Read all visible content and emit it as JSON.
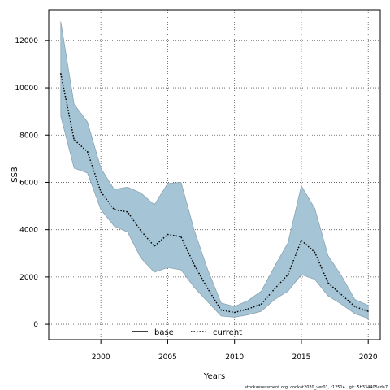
{
  "chart_data": {
    "type": "line",
    "title": "",
    "xlabel": "Years",
    "ylabel": "SSB",
    "xlim": [
      1996.1,
      2020.9
    ],
    "ylim": [
      -650,
      13300
    ],
    "x_ticks": [
      2000,
      2005,
      2010,
      2015,
      2020
    ],
    "x_tick_labels": [
      "2000",
      "2005",
      "2010",
      "2015",
      "2020"
    ],
    "y_ticks": [
      0,
      2000,
      4000,
      6000,
      8000,
      10000,
      12000
    ],
    "y_tick_labels": [
      "0",
      "2000",
      "4000",
      "6000",
      "8000",
      "10000",
      "12000"
    ],
    "grid": true,
    "legend_position": "bottom-left",
    "series": [
      {
        "name": "base",
        "style": "solid",
        "color": "#000000",
        "x": [],
        "values": []
      },
      {
        "name": "current",
        "style": "dotted",
        "color": "#000000",
        "x": [
          1997,
          1998,
          1999,
          2000,
          2001,
          2002,
          2003,
          2004,
          2005,
          2006,
          2007,
          2008,
          2009,
          2010,
          2011,
          2012,
          2013,
          2014,
          2015,
          2016,
          2017,
          2018,
          2019,
          2020
        ],
        "values": [
          10600,
          7800,
          7300,
          5600,
          4850,
          4750,
          3950,
          3300,
          3800,
          3700,
          2500,
          1500,
          600,
          500,
          650,
          850,
          1500,
          2100,
          3550,
          3050,
          1750,
          1250,
          750,
          550
        ]
      }
    ],
    "confidence_band": {
      "color": "#a5c5d6",
      "x": [
        1997,
        1998,
        1999,
        2000,
        2001,
        2002,
        2003,
        2004,
        2005,
        2006,
        2007,
        2008,
        2009,
        2010,
        2011,
        2012,
        2013,
        2014,
        2015,
        2016,
        2017,
        2018,
        2019,
        2020
      ],
      "upper": [
        12800,
        9300,
        8550,
        6600,
        5700,
        5800,
        5550,
        5050,
        5950,
        6000,
        3950,
        2300,
        900,
        750,
        1000,
        1400,
        2450,
        3450,
        5850,
        4900,
        2900,
        2050,
        1050,
        800
      ],
      "lower": [
        8800,
        6600,
        6400,
        4850,
        4150,
        3900,
        2800,
        2200,
        2400,
        2300,
        1550,
        950,
        350,
        300,
        400,
        550,
        1050,
        1400,
        2100,
        1900,
        1200,
        850,
        450,
        250
      ]
    }
  },
  "footer": {
    "text": "stockassessment.org, codkat2020_ver01, r12514 , git: 5b334405cda7"
  }
}
